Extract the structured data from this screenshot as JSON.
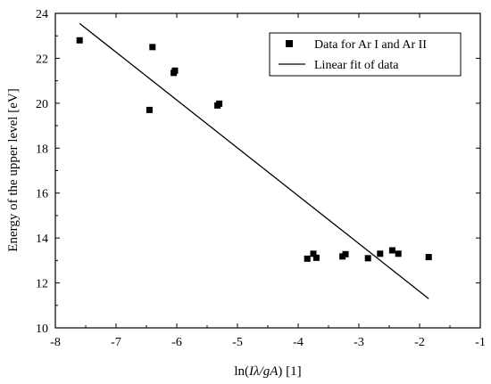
{
  "chart_data": {
    "type": "scatter",
    "title": "",
    "xlabel": {
      "prefix": "ln(",
      "italic": "Iλ/gA",
      "suffix": ") [1]"
    },
    "ylabel": "Energy of the upper level [eV]",
    "xlim": [
      -8,
      -1
    ],
    "ylim": [
      10,
      24
    ],
    "xticks": [
      -8,
      -7,
      -6,
      -5,
      -4,
      -3,
      -2,
      -1
    ],
    "yticks": [
      10,
      12,
      14,
      16,
      18,
      20,
      22,
      24
    ],
    "grid": false,
    "legend_position": "top-right",
    "series": [
      {
        "name": "Data for Ar I and Ar II",
        "kind": "points",
        "marker": "square",
        "color": "#000000",
        "points": [
          [
            -7.6,
            22.8
          ],
          [
            -6.45,
            19.7
          ],
          [
            -6.4,
            22.5
          ],
          [
            -6.05,
            21.35
          ],
          [
            -6.03,
            21.45
          ],
          [
            -5.33,
            19.9
          ],
          [
            -5.3,
            19.98
          ],
          [
            -3.85,
            13.08
          ],
          [
            -3.75,
            13.3
          ],
          [
            -3.7,
            13.12
          ],
          [
            -3.27,
            13.18
          ],
          [
            -3.22,
            13.28
          ],
          [
            -2.85,
            13.1
          ],
          [
            -2.65,
            13.3
          ],
          [
            -2.45,
            13.45
          ],
          [
            -2.35,
            13.3
          ],
          [
            -1.85,
            13.15
          ]
        ]
      },
      {
        "name": "Linear fit of data",
        "kind": "line",
        "color": "#000000",
        "points": [
          [
            -7.6,
            23.55
          ],
          [
            -1.85,
            11.3
          ]
        ]
      }
    ]
  }
}
